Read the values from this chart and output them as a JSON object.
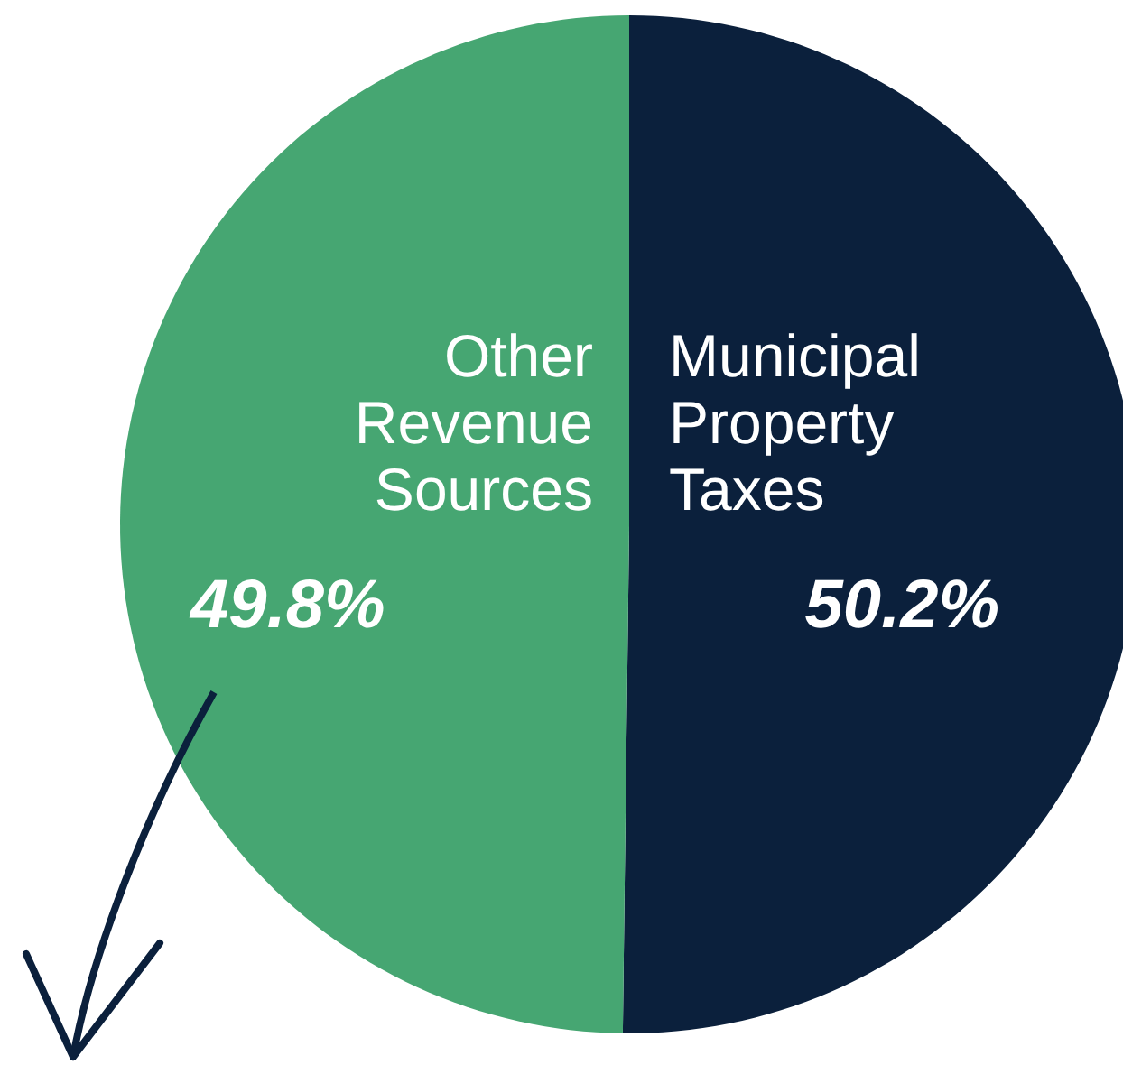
{
  "chart_data": {
    "type": "pie",
    "categories": [
      "Municipal Property Taxes",
      "Other Revenue Sources"
    ],
    "values": [
      50.2,
      49.8
    ],
    "colors": [
      "#0b203c",
      "#46a672"
    ],
    "value_labels": [
      "50.2%",
      "49.8%"
    ]
  }
}
